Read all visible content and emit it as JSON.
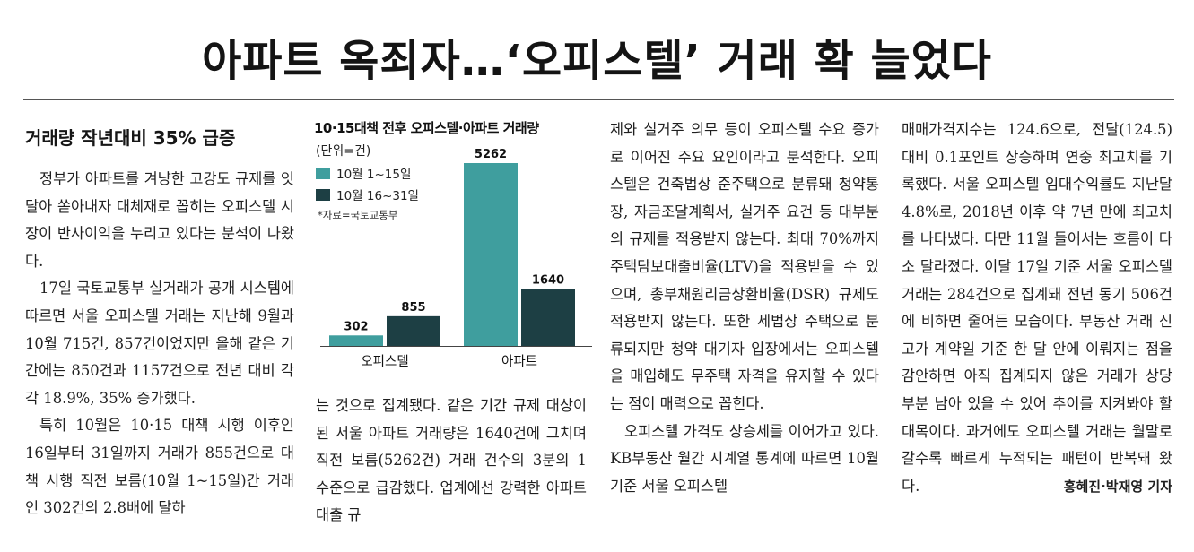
{
  "headline": "아파트 옥죄자…‘오피스텔’ 거래 확 늘었다",
  "subhead": "거래량 작년대비 35% 급증",
  "col1": {
    "p1": "정부가 아파트를 겨냥한 고강도 규제를 잇달아 쏟아내자 대체재로 꼽히는 오피스텔 시장이 반사이익을 누리고 있다는 분석이 나왔다.",
    "p2": "17일 국토교통부 실거래가 공개 시스템에 따르면 서울 오피스텔 거래는 지난해 9월과 10월 715건, 857건이었지만 올해 같은 기간에는 850건과 1157건으로 전년 대비 각각 18.9%, 35% 증가했다.",
    "p3": "특히 10월은 10·15 대책 시행 이후인 16일부터 31일까지 거래가 855건으로 대책 시행 직전 보름(10월 1~15일)간 거래인 302건의 2.8배에 달하"
  },
  "col2": {
    "text": "는 것으로 집계됐다. 같은 기간 규제 대상이 된 서울 아파트 거래량은 1640건에 그치며 직전 보름(5262건) 거래 건수의 3분의 1 수준으로 급감했다. 업계에선 강력한 아파트 대출 규"
  },
  "col3": {
    "p1": "제와 실거주 의무 등이 오피스텔 수요 증가로 이어진 주요 요인이라고 분석한다. 오피스텔은 건축법상 준주택으로 분류돼 청약통장, 자금조달계획서, 실거주 요건 등 대부분의 규제를 적용받지 않는다. 최대 70%까지 주택담보대출비율(LTV)을 적용받을 수 있으며, 총부채원리금상환비율(DSR) 규제도 적용받지 않는다. 또한 세법상 주택으로 분류되지만 청약 대기자 입장에서는 오피스텔을 매입해도 무주택 자격을 유지할 수 있다는 점이 매력으로 꼽힌다.",
    "p2": "오피스텔 가격도 상승세를 이어가고 있다. KB부동산 월간 시계열 통계에 따르면 10월 기준 서울 오피스텔"
  },
  "col4": {
    "text": "매매가격지수는 124.6으로, 전달(124.5) 대비 0.1포인트 상승하며 연중 최고치를 기록했다. 서울 오피스텔 임대수익률도 지난달 4.8%로, 2018년 이후 약 7년 만에 최고치를 나타냈다. 다만 11월 들어서는 흐름이 다소 달라졌다. 이달 17일 기준 서울 오피스텔 거래는 284건으로 집계돼 전년 동기 506건에 비하면 줄어든 모습이다. 부동산 거래 신고가 계약일 기준 한 달 안에 이뤄지는 점을 감안하면 아직 집계되지 않은 거래가 상당 부분 남아 있을 수 있어 추이를 지켜봐야 할 대목이다. 과거에도 오피스텔 거래는 월말로 갈수록 빠르게 누적되는 패턴이 반복돼 왔다.",
    "byline": "홍혜진·박재영 기자"
  },
  "colors": {
    "series1": "#3f9e9e",
    "series2": "#1d3f44"
  },
  "chart_data": {
    "type": "bar",
    "title": "10·15대책 전후 오피스텔·아파트 거래량",
    "unit": "(단위=건)",
    "source": "*자료=국토교통부",
    "categories": [
      "오피스텔",
      "아파트"
    ],
    "series": [
      {
        "name": "10월 1~15일",
        "values": [
          302,
          5262
        ]
      },
      {
        "name": "10월 16~31일",
        "values": [
          855,
          1640
        ]
      }
    ],
    "ylim": [
      0,
      5262
    ],
    "legend": "top-left",
    "grid": false
  }
}
